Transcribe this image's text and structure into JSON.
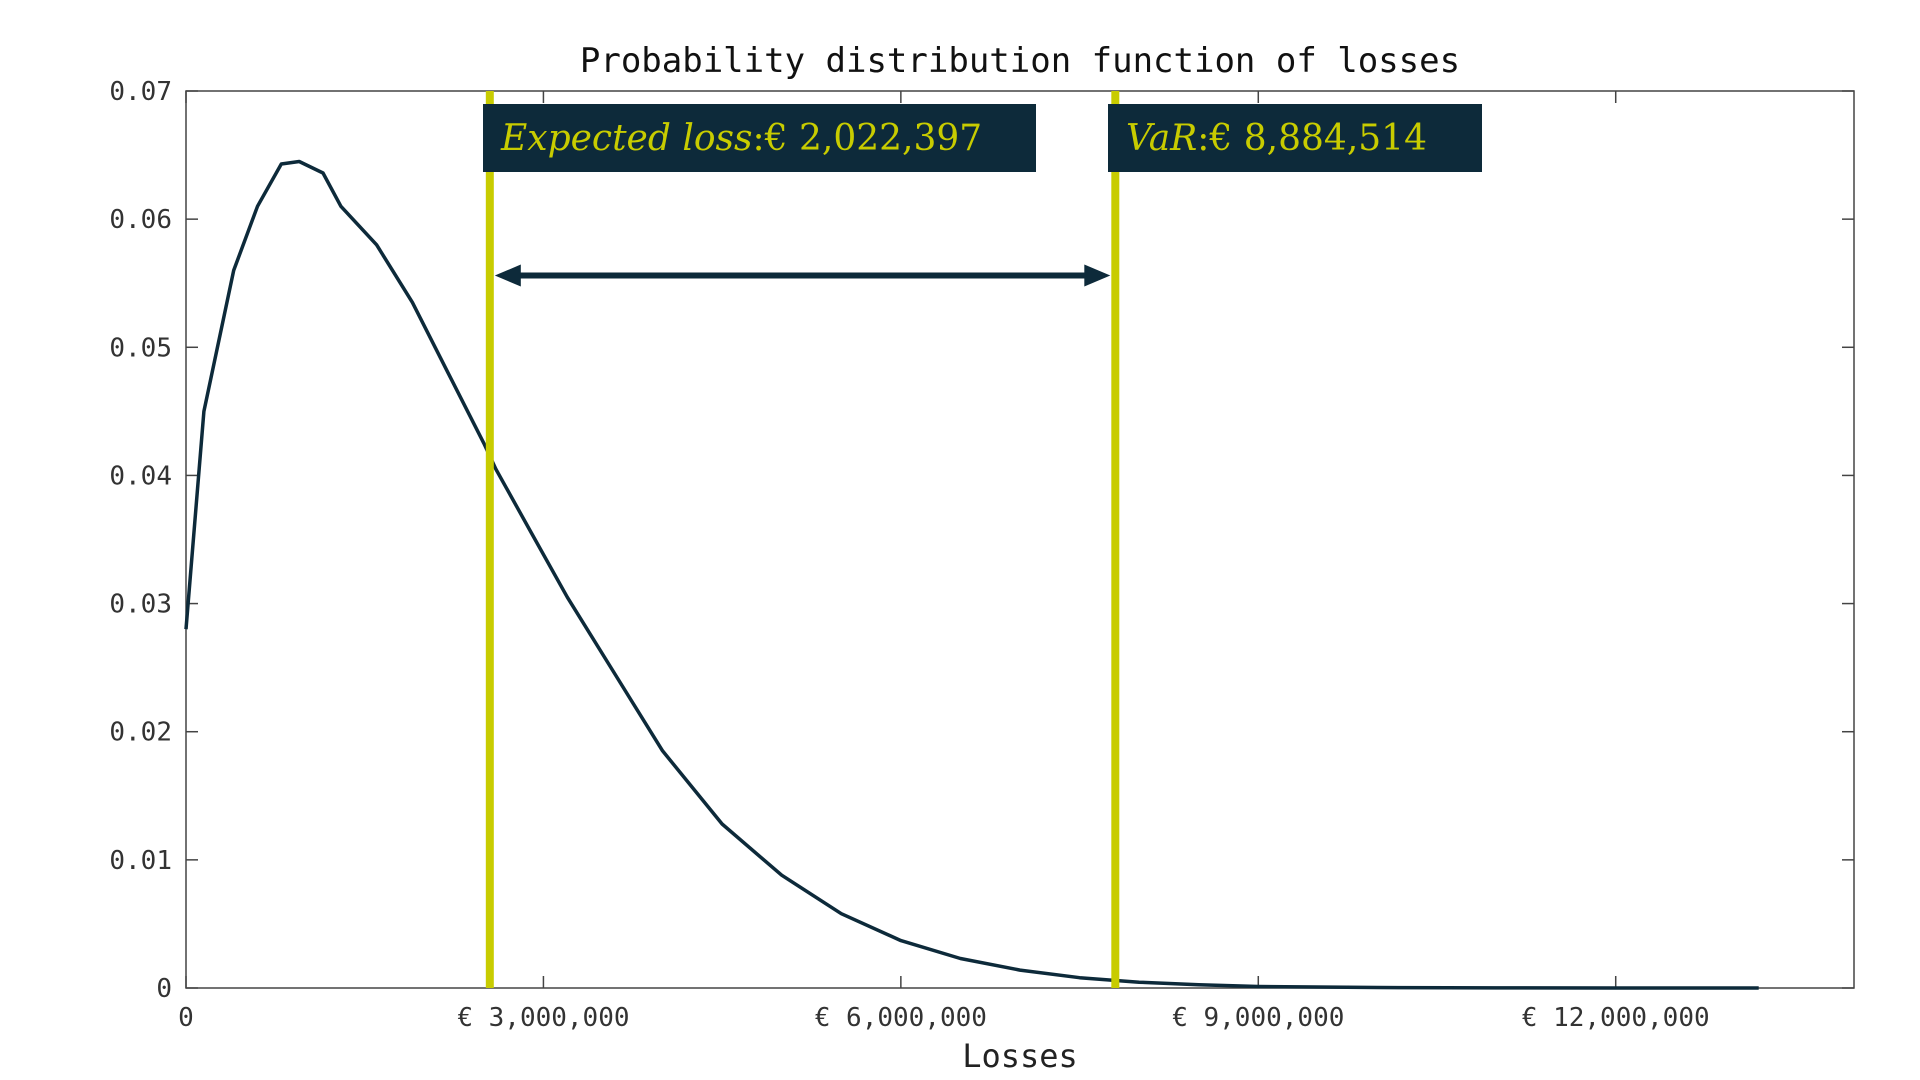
{
  "chart_data": {
    "type": "line",
    "title": "Probability distribution function of losses",
    "xlabel": "Losses",
    "ylabel": "",
    "xlim": [
      0,
      14000000
    ],
    "ylim": [
      0,
      0.07
    ],
    "grid": false,
    "x_ticks": [
      0,
      3000000,
      6000000,
      9000000,
      12000000
    ],
    "x_tick_labels": [
      "0",
      "€ 3,000,000",
      "€ 6,000,000",
      "€ 9,000,000",
      "€ 12,000,000"
    ],
    "y_ticks": [
      0,
      0.01,
      0.02,
      0.03,
      0.04,
      0.05,
      0.06,
      0.07
    ],
    "y_tick_labels": [
      "0",
      "0.01",
      "0.02",
      "0.03",
      "0.04",
      "0.05",
      "0.06",
      "0.07"
    ],
    "series": [
      {
        "color": "#0d2a3a",
        "x": [
          0,
          150000,
          400000,
          600000,
          800000,
          950000,
          1150000,
          1300000,
          1600000,
          1900000,
          2200000,
          2500000,
          2600000,
          2900000,
          3200000,
          3600000,
          4000000,
          4500000,
          5000000,
          5500000,
          6000000,
          6500000,
          7000000,
          7500000,
          8000000,
          8500000,
          9000000,
          10000000,
          11000000,
          12000000,
          13200000
        ],
        "y": [
          0.028,
          0.045,
          0.056,
          0.061,
          0.0643,
          0.0645,
          0.0636,
          0.061,
          0.058,
          0.0535,
          0.048,
          0.0425,
          0.0405,
          0.0355,
          0.0305,
          0.0245,
          0.0185,
          0.0128,
          0.0088,
          0.0058,
          0.0037,
          0.0023,
          0.0014,
          0.0008,
          0.00045,
          0.00025,
          0.00012,
          4e-05,
          1e-05,
          0.0,
          0.0
        ]
      }
    ],
    "vertical_lines": [
      {
        "x": 2550000,
        "color": "#c8cc00"
      },
      {
        "x": 7800000,
        "color": "#c8cc00"
      }
    ],
    "arrow": {
      "x1": 2550000,
      "x2": 7800000,
      "y": 0.0556,
      "color": "#0d2a3a"
    },
    "annotations": [
      {
        "emph": "Expected loss",
        "sep": ":",
        "value": "€ 2,022,397",
        "box_color": "#0d2a3a",
        "text_color": "#c8cc00"
      },
      {
        "emph": "VaR",
        "sep": ":",
        "value": "€ 8,884,514",
        "box_color": "#0d2a3a",
        "text_color": "#c8cc00"
      }
    ]
  }
}
